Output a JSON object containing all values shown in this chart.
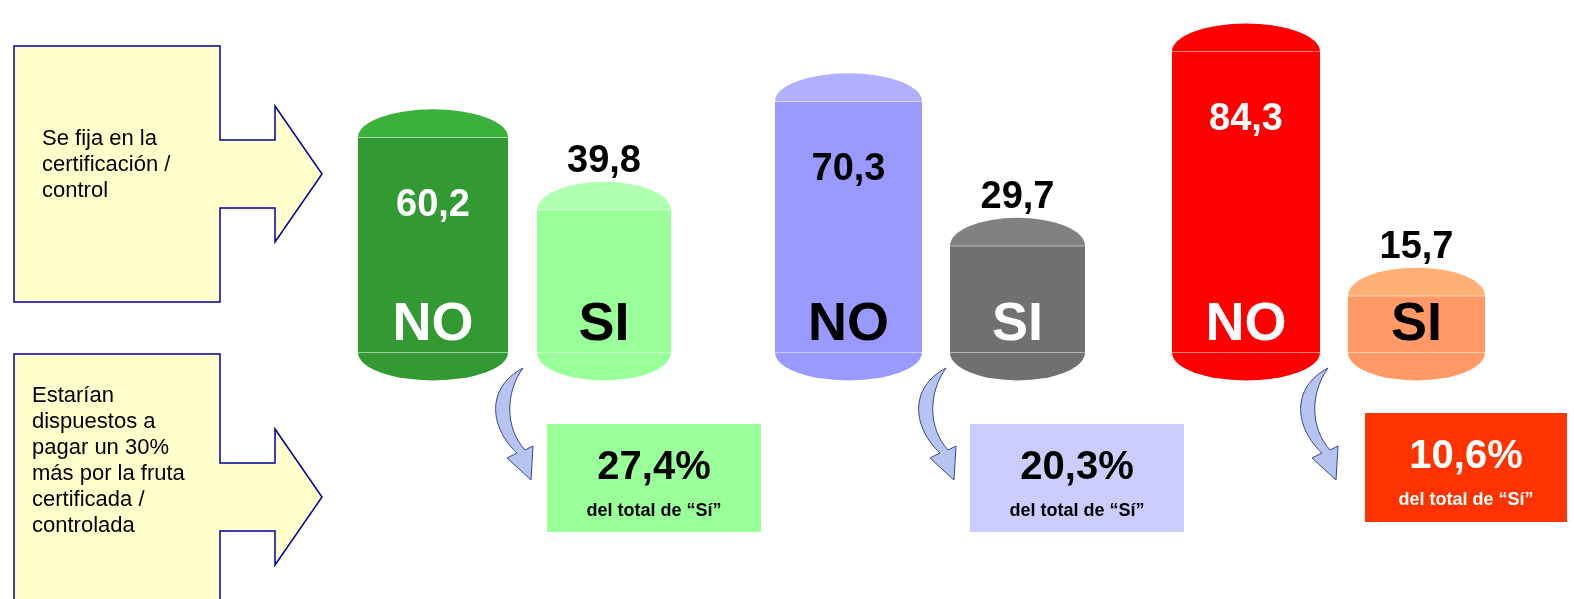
{
  "chart_data": {
    "type": "bar",
    "categories": [
      "NO",
      "SI",
      "NO",
      "SI",
      "NO",
      "SI"
    ],
    "values": [
      60.2,
      39.8,
      70.3,
      29.7,
      84.3,
      15.7
    ],
    "colors": [
      "#339933",
      "#99ff99",
      "#9999ff",
      "#707070",
      "#ff0000",
      "#ff9966"
    ],
    "value_labels": [
      "60,2",
      "39,8",
      "70,3",
      "29,7",
      "84,3",
      "15,7"
    ],
    "annotations": [
      "Se fija en la certificación / control",
      "Estarían dispuestos a pagar un 30% más por la fruta certificada / controlada",
      "27,4%",
      "del total de “Sí”",
      "20,3%",
      "del total de “Sí”",
      "10,6%",
      "del total de “Sí”"
    ]
  }
}
